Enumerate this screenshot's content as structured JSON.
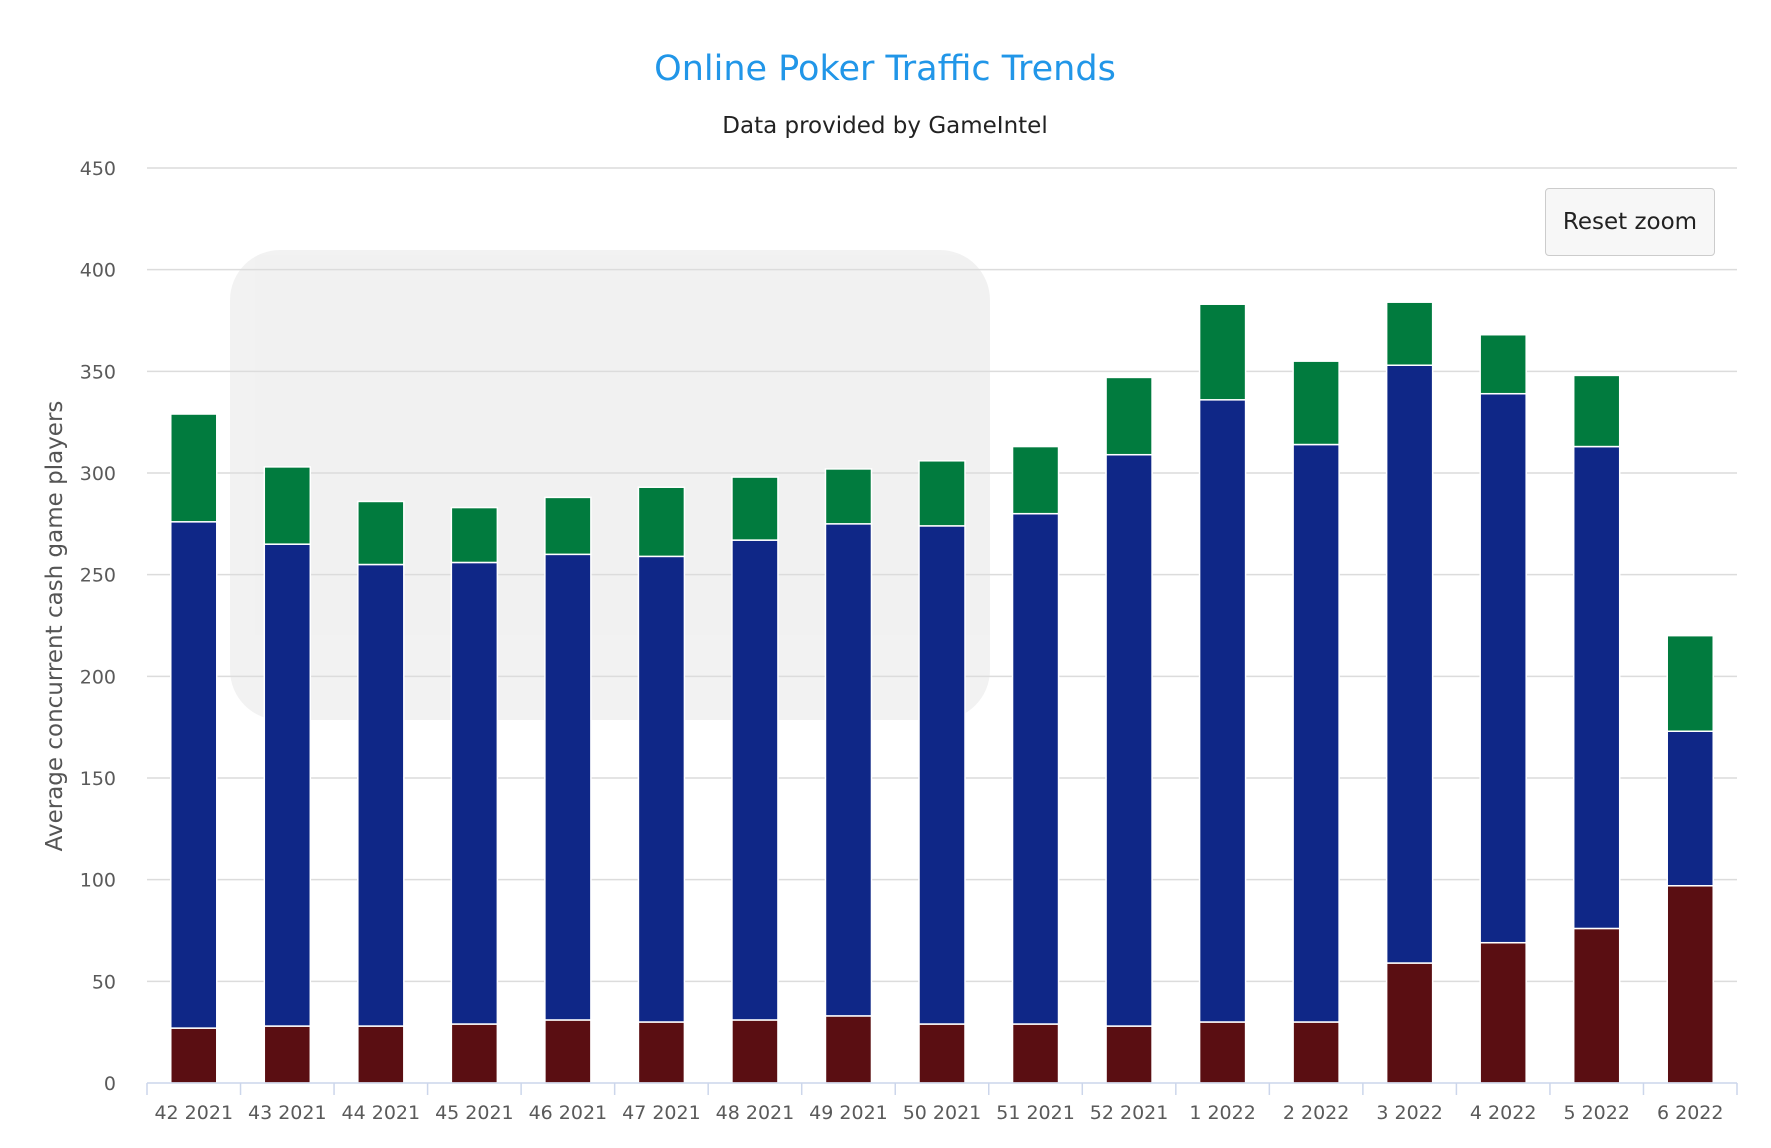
{
  "chart_data": {
    "type": "bar",
    "stacked": true,
    "title": "Online Poker Traffic Trends",
    "subtitle": "Data provided by GameIntel",
    "ylabel": "Average concurrent cash game players",
    "ylim": [
      0,
      450
    ],
    "yticks": [
      0,
      50,
      100,
      150,
      200,
      250,
      300,
      350,
      400,
      450
    ],
    "grid": true,
    "categories": [
      "42 2021",
      "43 2021",
      "44 2021",
      "45 2021",
      "46 2021",
      "47 2021",
      "48 2021",
      "49 2021",
      "50 2021",
      "51 2021",
      "52 2021",
      "1 2022",
      "2 2022",
      "3 2022",
      "4 2022",
      "5 2022",
      "6 2022"
    ],
    "series": [
      {
        "color": "#5a0e12",
        "values": [
          27,
          28,
          28,
          29,
          31,
          30,
          31,
          33,
          29,
          29,
          28,
          30,
          30,
          59,
          69,
          76,
          97
        ]
      },
      {
        "color": "#0f2787",
        "values": [
          249,
          237,
          227,
          227,
          229,
          229,
          236,
          242,
          245,
          251,
          281,
          306,
          284,
          294,
          270,
          237,
          76
        ]
      },
      {
        "color": "#017b3e",
        "values": [
          53,
          38,
          31,
          27,
          28,
          34,
          31,
          27,
          32,
          33,
          38,
          47,
          41,
          31,
          29,
          35,
          47
        ]
      }
    ]
  },
  "toolbar": {
    "reset_zoom_label": "Reset zoom"
  }
}
